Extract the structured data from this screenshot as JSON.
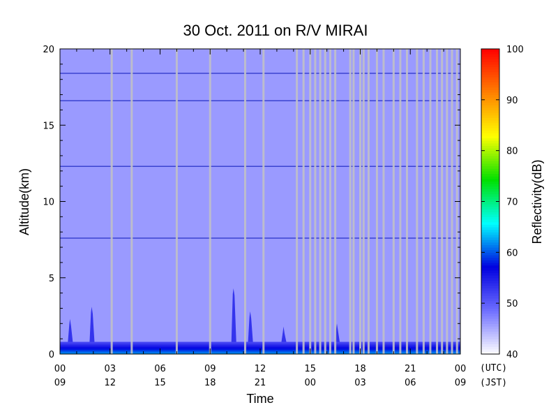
{
  "chart_data": {
    "type": "heatmap",
    "title": "30 Oct. 2011  on R/V MIRAI",
    "xlabel": "Time",
    "ylabel": "Altitude(km)",
    "xlim": [
      0,
      24
    ],
    "ylim": [
      0,
      20
    ],
    "y_ticks": [
      0,
      5,
      10,
      15,
      20
    ],
    "x_ticks_utc": [
      "00",
      "03",
      "06",
      "09",
      "12",
      "15",
      "18",
      "21",
      "00"
    ],
    "x_ticks_jst": [
      "09",
      "12",
      "15",
      "18",
      "21",
      "00",
      "03",
      "06",
      "09"
    ],
    "x_timezone_labels": [
      "(UTC)",
      "(JST)"
    ],
    "colorbar": {
      "label": "Reflectivity(dB)",
      "range": [
        40,
        100
      ],
      "ticks": [
        40,
        50,
        60,
        70,
        80,
        90,
        100
      ],
      "colors": [
        "#ffffff",
        "#6f6fff",
        "#0000e0",
        "#00ffff",
        "#00e000",
        "#ffff00",
        "#ff8000",
        "#ff0000"
      ]
    },
    "background_reflectivity_db": 46,
    "surface_layer": {
      "altitude_km": [
        0,
        0.8
      ],
      "reflectivity_db": [
        52,
        62
      ]
    },
    "horizontal_bands_km": [
      7.6,
      12.3,
      16.6,
      18.4
    ],
    "cloud_spikes": [
      {
        "time_utc_h": 0.6,
        "top_km": 2.3
      },
      {
        "time_utc_h": 1.9,
        "top_km": 3.1
      },
      {
        "time_utc_h": 10.4,
        "top_km": 4.3
      },
      {
        "time_utc_h": 11.4,
        "top_km": 2.8
      },
      {
        "time_utc_h": 13.4,
        "top_km": 1.8
      },
      {
        "time_utc_h": 16.6,
        "top_km": 2.0
      }
    ],
    "data_gaps_utc_h": [
      3.1,
      4.3,
      7.0,
      9.0,
      11.1,
      12.2,
      14.2,
      14.6,
      15.0,
      15.3,
      15.6,
      15.9,
      16.2,
      16.5,
      17.4,
      17.6,
      18.0,
      18.2,
      18.5,
      19.0,
      19.4,
      20.0,
      20.4,
      20.8,
      21.4,
      21.8,
      22.2,
      22.6,
      22.9,
      23.2,
      23.5,
      23.8
    ],
    "grid": false,
    "legend": "colorbar-right",
    "colors": {
      "background": "#6f7cfb",
      "gap": "#c0c0c8",
      "band": "#2a35c8"
    }
  }
}
